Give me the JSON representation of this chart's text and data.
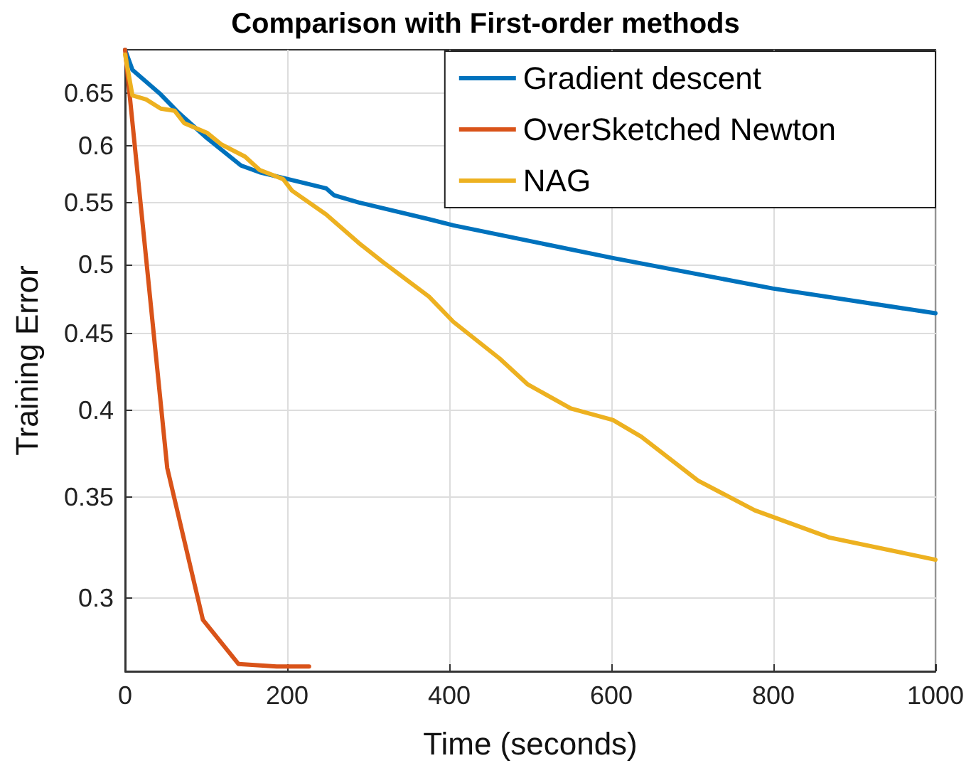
{
  "chart_data": {
    "type": "line",
    "title": "Comparison with First-order methods",
    "xlabel": "Time (seconds)",
    "ylabel": "Training Error",
    "log": "y",
    "grid": true,
    "legend": "top right",
    "line_style": "solid",
    "marker": "none",
    "xlim": [
      0,
      1000
    ],
    "xticks": [
      0,
      200,
      400,
      600,
      800,
      1000
    ],
    "ylim": [
      0.268,
      0.695
    ],
    "yticks": [
      0.3,
      0.35,
      0.4,
      0.45,
      0.5,
      0.55,
      0.6,
      0.65
    ],
    "series": [
      {
        "name": "Gradient descent",
        "color": "#0072bd",
        "x": [
          0,
          9,
          44,
          66,
          101,
          143,
          166,
          201,
          248,
          258,
          288,
          375,
          405,
          602,
          799,
          1000
        ],
        "values": [
          0.695,
          0.674,
          0.649,
          0.631,
          0.607,
          0.582,
          0.576,
          0.57,
          0.562,
          0.556,
          0.55,
          0.536,
          0.531,
          0.505,
          0.482,
          0.464
        ]
      },
      {
        "name": "OverSketched Newton",
        "color": "#d95319",
        "x": [
          0,
          52,
          96,
          140,
          187,
          227
        ],
        "values": [
          0.695,
          0.366,
          0.29,
          0.271,
          0.27,
          0.27
        ]
      },
      {
        "name": "NAG",
        "color": "#edb120",
        "x": [
          0,
          9,
          26,
          44,
          61,
          73,
          101,
          119,
          148,
          166,
          195,
          206,
          248,
          288,
          318,
          375,
          405,
          462,
          497,
          550,
          602,
          637,
          707,
          777,
          869,
          1000
        ],
        "values": [
          0.69,
          0.648,
          0.644,
          0.635,
          0.633,
          0.621,
          0.612,
          0.601,
          0.59,
          0.578,
          0.57,
          0.56,
          0.54,
          0.517,
          0.502,
          0.476,
          0.458,
          0.433,
          0.416,
          0.401,
          0.394,
          0.384,
          0.359,
          0.343,
          0.329,
          0.318
        ]
      }
    ]
  }
}
